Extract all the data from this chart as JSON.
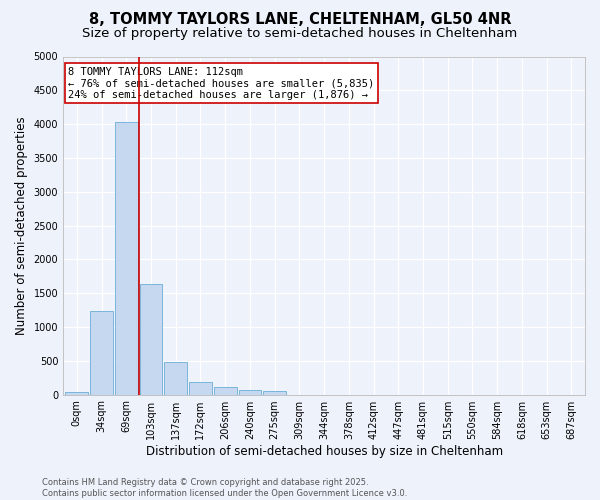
{
  "title_line1": "8, TOMMY TAYLORS LANE, CHELTENHAM, GL50 4NR",
  "title_line2": "Size of property relative to semi-detached houses in Cheltenham",
  "xlabel": "Distribution of semi-detached houses by size in Cheltenham",
  "ylabel": "Number of semi-detached properties",
  "categories": [
    "0sqm",
    "34sqm",
    "69sqm",
    "103sqm",
    "137sqm",
    "172sqm",
    "206sqm",
    "240sqm",
    "275sqm",
    "309sqm",
    "344sqm",
    "378sqm",
    "412sqm",
    "447sqm",
    "481sqm",
    "515sqm",
    "550sqm",
    "584sqm",
    "618sqm",
    "653sqm",
    "687sqm"
  ],
  "values": [
    40,
    1230,
    4030,
    1640,
    480,
    190,
    110,
    70,
    55,
    0,
    0,
    0,
    0,
    0,
    0,
    0,
    0,
    0,
    0,
    0,
    0
  ],
  "bar_color": "#c5d8f0",
  "bar_edge_color": "#6aaed6",
  "vline_color": "#cc0000",
  "annotation_line1": "8 TOMMY TAYLORS LANE: 112sqm",
  "annotation_line2": "← 76% of semi-detached houses are smaller (5,835)",
  "annotation_line3": "24% of semi-detached houses are larger (1,876) →",
  "annotation_box_color": "#ffffff",
  "annotation_box_edge_color": "#cc0000",
  "ylim": [
    0,
    5000
  ],
  "yticks": [
    0,
    500,
    1000,
    1500,
    2000,
    2500,
    3000,
    3500,
    4000,
    4500,
    5000
  ],
  "footnote": "Contains HM Land Registry data © Crown copyright and database right 2025.\nContains public sector information licensed under the Open Government Licence v3.0.",
  "background_color": "#eef2fb",
  "grid_color": "#ffffff",
  "title_fontsize": 10.5,
  "subtitle_fontsize": 9.5,
  "axis_label_fontsize": 8.5,
  "tick_fontsize": 7,
  "annotation_fontsize": 7.5,
  "footnote_fontsize": 6
}
